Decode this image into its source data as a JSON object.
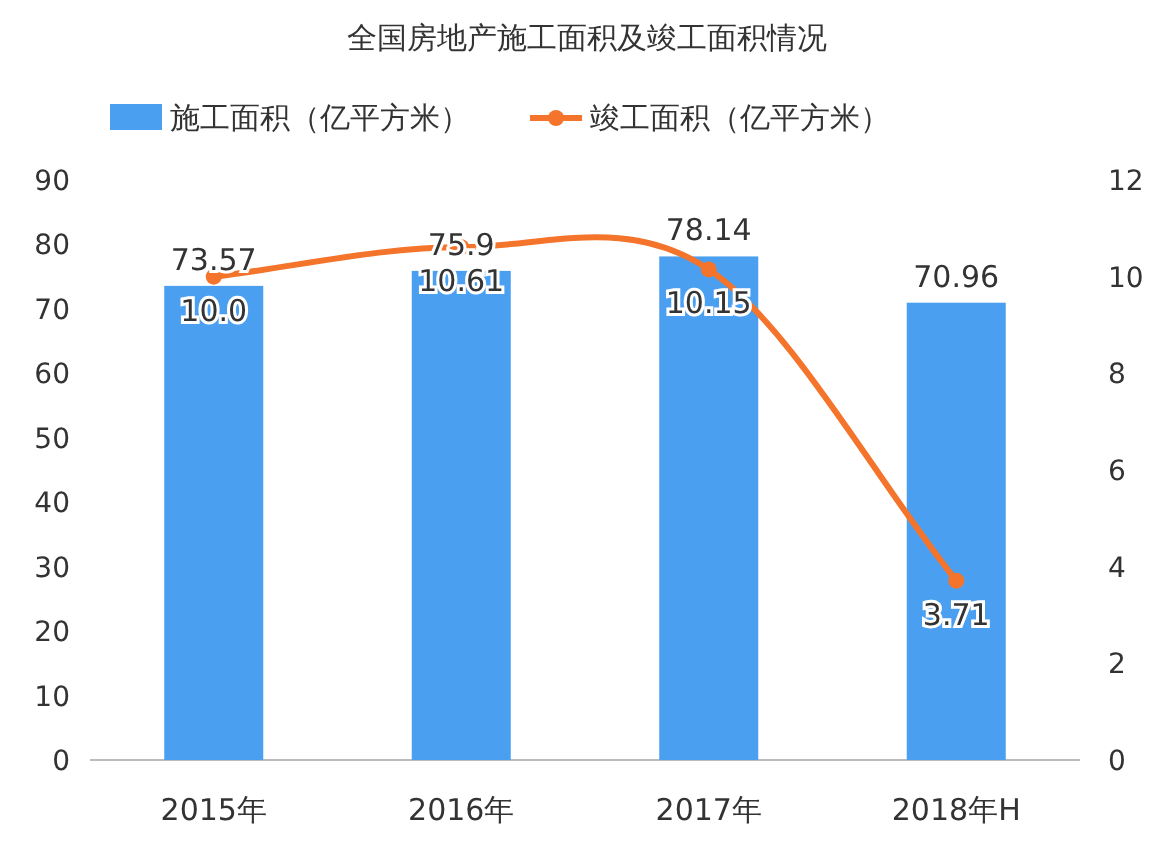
{
  "chart_data": {
    "type": "bar",
    "title": "全国房地产施工面积及竣工面积情况",
    "categories": [
      "2015年",
      "2016年",
      "2017年",
      "2018年H"
    ],
    "series": [
      {
        "name": "施工面积（亿平方米）",
        "color": "#4a9ff0",
        "values": [
          73.57,
          75.9,
          78.14,
          70.96
        ],
        "value_labels": [
          "73.57",
          "75.9",
          "78.14",
          "70.96"
        ]
      },
      {
        "name": "竣工面积（亿平方米）",
        "type": "line",
        "axis": "y2",
        "color": "#f4742b",
        "values": [
          10.0,
          10.61,
          10.15,
          3.71
        ],
        "value_labels": [
          "10.0",
          "10.61",
          "10.15",
          "3.71"
        ]
      }
    ],
    "ylim": [
      0,
      90
    ],
    "yticks": [
      0,
      10,
      20,
      30,
      40,
      50,
      60,
      70,
      80,
      90
    ],
    "y2lim": [
      0,
      12
    ],
    "y2ticks": [
      0,
      2,
      4,
      6,
      8,
      10,
      12
    ],
    "legend": "top",
    "marker": "circle",
    "grid": false
  }
}
